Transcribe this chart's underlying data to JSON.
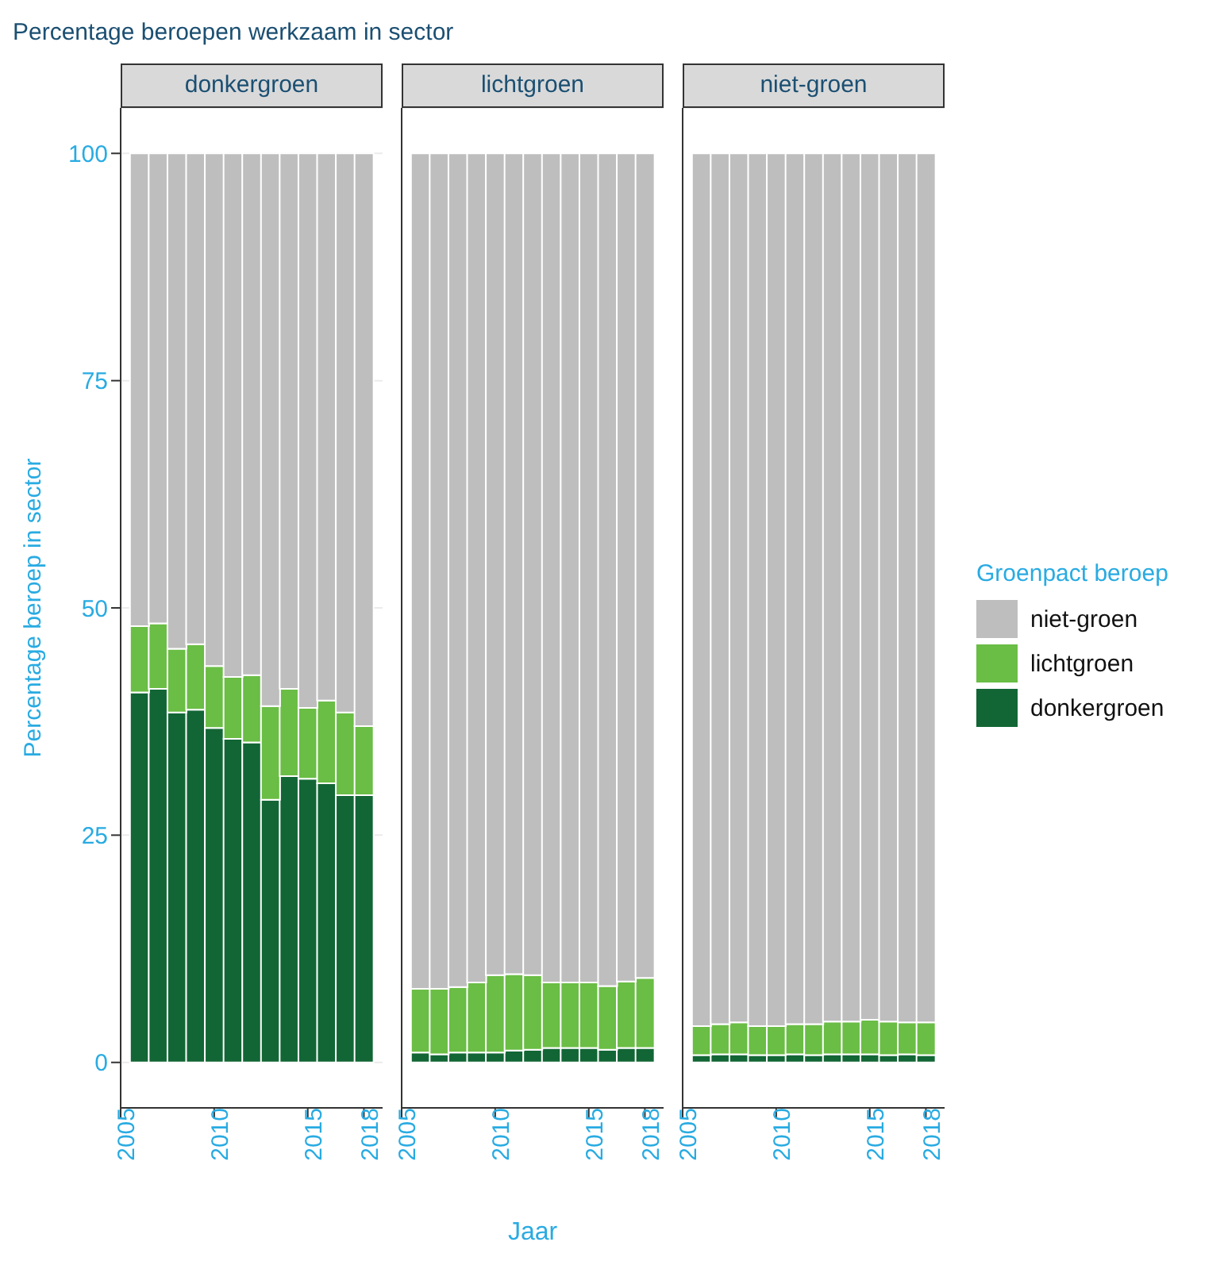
{
  "chart_data": [
    {
      "type": "bar",
      "title": "donkergroen",
      "annotations": [
        "Percentage beroepen werkzaam in sector"
      ],
      "ylabel": "Percentage beroep in sector",
      "stacked": true,
      "x": [
        2006,
        2007,
        2008,
        2009,
        2010,
        2011,
        2012,
        2013,
        2014,
        2015,
        2016,
        2017,
        2018
      ],
      "xlim": [
        2005,
        2019
      ],
      "xticks": [
        2005,
        2010,
        2015,
        2018
      ],
      "ylim": [
        -5,
        105
      ],
      "yticks": [
        0,
        25,
        50,
        75,
        100
      ],
      "grid": "y",
      "legend": false,
      "series": [
        {
          "color": "#126635",
          "values": [
            40.7,
            41.1,
            38.5,
            38.8,
            36.8,
            35.6,
            35.2,
            28.9,
            31.5,
            31.2,
            30.7,
            29.4,
            29.4
          ]
        },
        {
          "color": "#6abd45",
          "values": [
            7.3,
            7.2,
            7.0,
            7.2,
            6.8,
            6.8,
            7.4,
            10.3,
            9.6,
            7.8,
            9.1,
            9.1,
            7.6
          ]
        },
        {
          "color": "#bebebe",
          "values": [
            52.0,
            51.7,
            54.5,
            54.0,
            56.4,
            57.6,
            57.4,
            60.8,
            58.9,
            61.0,
            60.2,
            61.5,
            63.0
          ]
        }
      ]
    },
    {
      "type": "bar",
      "title": "lichtgroen",
      "xlabel": "Jaar",
      "stacked": true,
      "x": [
        2006,
        2007,
        2008,
        2009,
        2010,
        2011,
        2012,
        2013,
        2014,
        2015,
        2016,
        2017,
        2018
      ],
      "xlim": [
        2005,
        2019
      ],
      "xticks": [
        2005,
        2010,
        2015,
        2018
      ],
      "ylim": [
        -5,
        105
      ],
      "yticks": [
        0,
        25,
        50,
        75,
        100
      ],
      "grid": "y",
      "legend": false,
      "tick_labels": "x",
      "series": [
        {
          "color": "#126635",
          "values": [
            1.1,
            0.9,
            1.1,
            1.1,
            1.1,
            1.3,
            1.4,
            1.6,
            1.6,
            1.6,
            1.4,
            1.6,
            1.6
          ]
        },
        {
          "color": "#6abd45",
          "values": [
            7.0,
            7.2,
            7.2,
            7.7,
            8.5,
            8.4,
            8.2,
            7.2,
            7.2,
            7.2,
            7.0,
            7.3,
            7.7
          ]
        },
        {
          "color": "#bebebe",
          "values": [
            91.9,
            91.9,
            91.7,
            91.2,
            90.4,
            90.3,
            90.4,
            91.2,
            91.2,
            91.2,
            91.6,
            91.1,
            90.7
          ]
        }
      ]
    },
    {
      "type": "bar",
      "title": "niet-groen",
      "legend_title": "Groenpact beroep",
      "stacked": true,
      "x": [
        2006,
        2007,
        2008,
        2009,
        2010,
        2011,
        2012,
        2013,
        2014,
        2015,
        2016,
        2017,
        2018
      ],
      "xlim": [
        2005,
        2019
      ],
      "xticks": [
        2005,
        2010,
        2015,
        2018
      ],
      "ylim": [
        -5,
        105
      ],
      "yticks": [
        0,
        25,
        50,
        75,
        100
      ],
      "grid": "y",
      "legend": "right",
      "tick_labels": "x",
      "series": [
        {
          "name": "donkergroen",
          "color": "#126635",
          "values": [
            0.8,
            0.9,
            0.9,
            0.8,
            0.8,
            0.9,
            0.8,
            0.9,
            0.9,
            0.9,
            0.8,
            0.9,
            0.8
          ]
        },
        {
          "name": "lichtgroen",
          "color": "#6abd45",
          "values": [
            3.2,
            3.3,
            3.5,
            3.2,
            3.2,
            3.3,
            3.4,
            3.6,
            3.6,
            3.8,
            3.7,
            3.5,
            3.6
          ]
        },
        {
          "name": "niet-groen",
          "color": "#bebebe",
          "values": [
            96.0,
            95.8,
            95.6,
            96.0,
            96.0,
            95.8,
            95.8,
            95.5,
            95.5,
            95.3,
            95.5,
            95.6,
            95.6
          ]
        }
      ]
    }
  ]
}
